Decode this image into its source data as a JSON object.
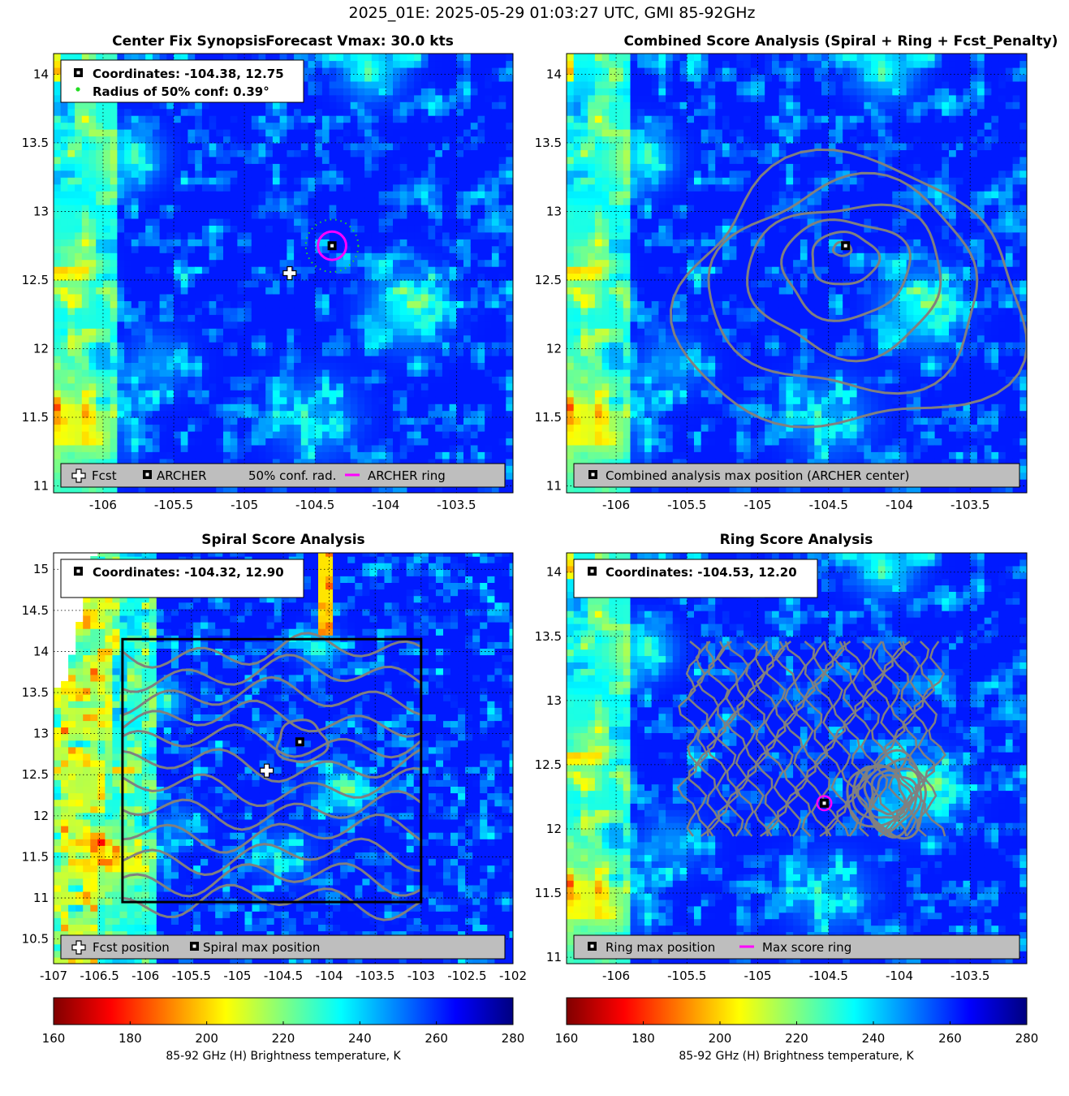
{
  "figure": {
    "suptitle": "2025_01E: 2025-05-29 01:03:27 UTC, GMI 85-92GHz"
  },
  "colors": {
    "archer_ring": "#ff00ff",
    "conf_radius": "#22dd22",
    "contour": "#808080",
    "legend_bg": "#bebebe"
  },
  "chart_data": [
    {
      "type": "heatmap",
      "panel": "center_fix_synopsis",
      "title": "Center Fix Synopsis",
      "title2": "Forecast Vmax: 30.0 kts",
      "xlim": [
        -106.35,
        -103.1
      ],
      "ylim": [
        10.95,
        14.15
      ],
      "xticks": [
        -106,
        -105.5,
        -105,
        -104.5,
        -104,
        -103.5
      ],
      "yticks": [
        11,
        11.5,
        12,
        12.5,
        13,
        13.5,
        14
      ],
      "xtick_labels": [
        "-106",
        "-105.5",
        "-105",
        "-104.5",
        "-104",
        "-103.5"
      ],
      "ytick_labels": [
        "11",
        "11.5",
        "12",
        "12.5",
        "13",
        "13.5",
        "14"
      ],
      "archer_center": [
        -104.38,
        12.75
      ],
      "forecast_position": [
        -104.68,
        12.55
      ],
      "archer_ring_radius_deg": 0.2,
      "conf_radius_deg": 0.39,
      "info_box": [
        "Coordinates: -104.38, 12.75",
        "Radius of 50% conf: 0.39°"
      ],
      "legend": [
        "Fcst",
        "ARCHER",
        "50% conf. rad.",
        "ARCHER ring"
      ]
    },
    {
      "type": "heatmap",
      "panel": "combined_score",
      "title": "Combined Score Analysis (Spiral + Ring + Fcst_Penalty)",
      "xlim": [
        -106.35,
        -103.1
      ],
      "ylim": [
        10.95,
        14.15
      ],
      "xticks": [
        -106,
        -105.5,
        -105,
        -104.5,
        -104,
        -103.5
      ],
      "yticks": [
        11,
        11.5,
        12,
        12.5,
        13,
        13.5,
        14
      ],
      "xtick_labels": [
        "-106",
        "-105.5",
        "-105",
        "-104.5",
        "-104",
        "-103.5"
      ],
      "ytick_labels": [
        "11",
        "11.5",
        "12",
        "12.5",
        "13",
        "13.5",
        "14"
      ],
      "max_position": [
        -104.38,
        12.75
      ],
      "contour_radii_deg": [
        0.12,
        0.45,
        0.85,
        1.3,
        1.8,
        2.3
      ],
      "legend": [
        "Combined analysis max position (ARCHER center)"
      ]
    },
    {
      "type": "heatmap",
      "panel": "spiral_score",
      "title": "Spiral Score Analysis",
      "xlim": [
        -107,
        -102
      ],
      "ylim": [
        10.2,
        15.2
      ],
      "xticks": [
        -107,
        -106.5,
        -106,
        -105.5,
        -105,
        -104.5,
        -104,
        -103.5,
        -103,
        -102.5,
        -102
      ],
      "yticks": [
        10.5,
        11,
        11.5,
        12,
        12.5,
        13,
        13.5,
        14,
        14.5,
        15
      ],
      "xtick_labels": [
        "-107",
        "-106.5",
        "-106",
        "-105.5",
        "-105",
        "-104.5",
        "-104",
        "-103.5",
        "-103",
        "-102.5",
        "-102"
      ],
      "ytick_labels": [
        "10.5",
        "11",
        "11.5",
        "12",
        "12.5",
        "13",
        "13.5",
        "14",
        "14.5",
        "15"
      ],
      "max_position": [
        -104.32,
        12.9
      ],
      "forecast_position": [
        -104.68,
        12.55
      ],
      "search_box": {
        "x0": -106.25,
        "x1": -103.0,
        "y0": 10.95,
        "y1": 14.15
      },
      "info_box": [
        "Coordinates: -104.32, 12.90"
      ],
      "legend": [
        "Fcst position",
        "Spiral max position"
      ]
    },
    {
      "type": "heatmap",
      "panel": "ring_score",
      "title": "Ring Score Analysis",
      "xlim": [
        -106.35,
        -103.1
      ],
      "ylim": [
        10.95,
        14.15
      ],
      "xticks": [
        -106,
        -105.5,
        -105,
        -104.5,
        -104,
        -103.5
      ],
      "yticks": [
        11,
        11.5,
        12,
        12.5,
        13,
        13.5,
        14
      ],
      "xtick_labels": [
        "-106",
        "-105.5",
        "-105",
        "-104.5",
        "-104",
        "-103.5"
      ],
      "ytick_labels": [
        "11",
        "11.5",
        "12",
        "12.5",
        "13",
        "13.5",
        "14"
      ],
      "max_position": [
        -104.53,
        12.2
      ],
      "ring_radius_deg": 0.1,
      "info_box": [
        "Coordinates: -104.53, 12.20"
      ],
      "legend": [
        "Ring max position",
        "Max score ring"
      ]
    }
  ],
  "colorbars": [
    {
      "range": [
        160,
        280
      ],
      "tick_labels": [
        "160",
        "180",
        "200",
        "220",
        "240",
        "260",
        "280"
      ],
      "label": "85-92 GHz (H) Brightness temperature, K"
    },
    {
      "range": [
        160,
        280
      ],
      "tick_labels": [
        "160",
        "180",
        "200",
        "220",
        "240",
        "260",
        "280"
      ],
      "label": "85-92 GHz (H) Brightness temperature, K"
    }
  ]
}
